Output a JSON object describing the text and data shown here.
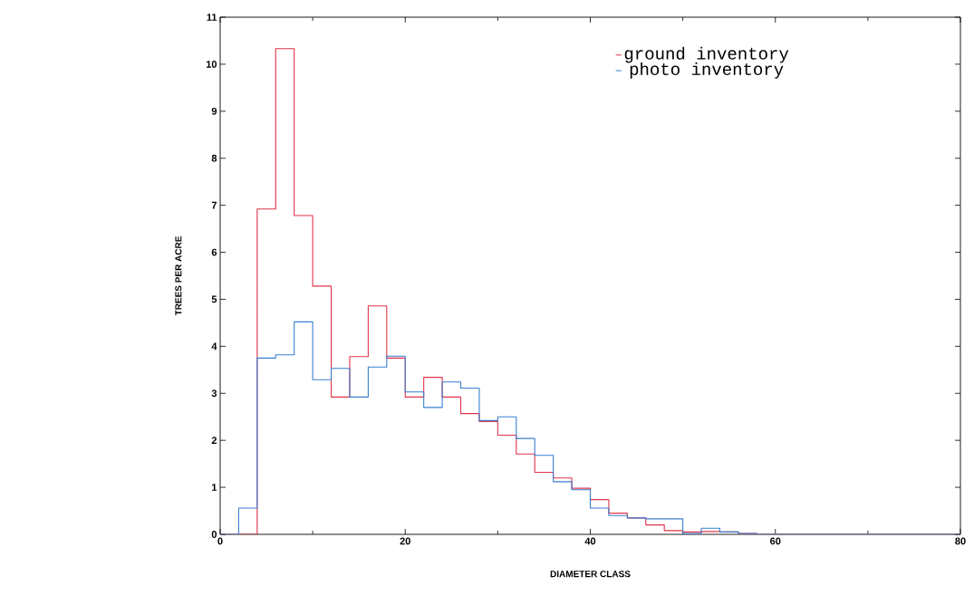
{
  "chart_data": {
    "type": "histogram",
    "xlabel": "DIAMETER CLASS",
    "ylabel": "TREES PER ACRE",
    "bins": [
      0,
      2,
      4,
      6,
      8,
      10,
      12,
      14,
      16,
      18,
      20,
      22,
      24,
      26,
      28,
      30,
      32,
      34,
      36,
      38,
      40,
      42,
      44,
      46,
      48,
      50,
      52,
      54,
      56,
      58,
      60,
      62,
      64,
      66,
      68,
      70,
      72,
      74,
      76,
      78,
      80
    ],
    "series": [
      {
        "name": "ground inventory",
        "color": "#e0344a",
        "values": [
          0,
          0,
          6.92,
          10.33,
          6.78,
          5.28,
          2.92,
          3.78,
          4.86,
          3.75,
          2.92,
          3.34,
          2.92,
          2.57,
          2.4,
          2.11,
          1.71,
          1.32,
          1.2,
          0.98,
          0.74,
          0.45,
          0.35,
          0.2,
          0.08,
          0.05,
          0.06,
          0.05,
          0.02,
          0,
          0,
          0,
          0,
          0,
          0,
          0,
          0,
          0,
          0,
          0
        ]
      },
      {
        "name": "photo inventory",
        "color": "#3a7fd0",
        "values": [
          0,
          0.56,
          3.75,
          3.82,
          4.52,
          3.29,
          3.53,
          2.92,
          3.56,
          3.79,
          3.03,
          2.7,
          3.24,
          3.11,
          2.42,
          2.5,
          2.04,
          1.68,
          1.12,
          0.95,
          0.56,
          0.4,
          0.35,
          0.33,
          0.33,
          0.02,
          0.13,
          0.05,
          0.02,
          0,
          0,
          0,
          0,
          0,
          0,
          0,
          0,
          0,
          0,
          0
        ]
      }
    ],
    "xlim": [
      0,
      80
    ],
    "ylim": [
      0,
      11
    ],
    "xticks": [
      0,
      20,
      40,
      60,
      80
    ],
    "yticks": [
      0,
      1,
      2,
      3,
      4,
      5,
      6,
      7,
      8,
      9,
      10,
      11
    ],
    "grid": false,
    "legend": "top right"
  }
}
